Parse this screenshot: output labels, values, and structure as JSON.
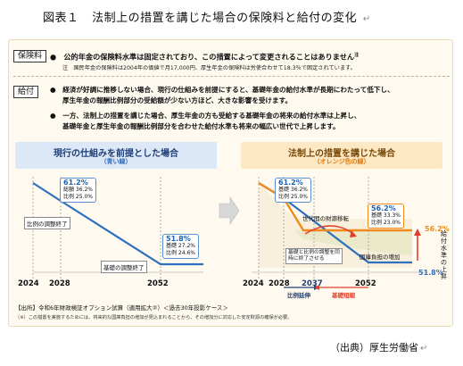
{
  "title": {
    "figure": "図表１",
    "text": "法制上の措置を講じた場合の保険料と給付の変化",
    "mark": "↵"
  },
  "premium": {
    "tag": "保険料",
    "bullet": "●　公的年金の保険料水準は固定されており、この措置によって変更されることはありません",
    "note_mark": "注",
    "note": "注　国民年金の保険料は2004年の価値で月17,000円、厚生年金の保険料は労使合わせて18.3％で固定されています。"
  },
  "benefit": {
    "tag": "給付",
    "bullet1_l1": "●　経済が好調に推移しない場合、現行の仕組みを前提にすると、基礎年金の給付水準が長期にわたって低下し、",
    "bullet1_l2": "厚生年金の報酬比例部分の受給額が少ない方ほど、大きな影響を受けます。",
    "bullet2_l1": "●　一方、法制上の措置を講じた場合、厚生年金の方も受給する基礎年金の将来の給付水準は上昇し、",
    "bullet2_l2": "基礎年金と厚生年金の報酬比例部分を合わせた給付水準も将来の幅広い世代で上昇します。"
  },
  "left_chart": {
    "title": "現行の仕組みを前提とした場合",
    "subtitle": "（青い線）",
    "start": {
      "total": "61.2%",
      "l1": "総額 36.2%",
      "l2": "比例 25.0%"
    },
    "end": {
      "total": "51.8%",
      "l1": "基礎 27.2%",
      "l2": "比例 24.6%"
    },
    "label_proportional": "比例の調整終了",
    "label_basic": "基礎の調整終了",
    "years": [
      "2024",
      "2028",
      "2052"
    ]
  },
  "right_chart": {
    "title": "法制上の措置を講じた場合",
    "subtitle": "（オレンジ色の線）",
    "start": {
      "total": "61.2%",
      "l1": "基礎 36.2%",
      "l2": "比例 25.0%"
    },
    "end": {
      "total": "56.2%",
      "l1": "基礎 33.3%",
      "l2": "比例 23.0%"
    },
    "label_transfer": "世代間の財源移転",
    "label_adjust": "基礎と比例の調整を同時に終了させる",
    "label_burden": "国庫負担の増加",
    "value_orange": "56.2%",
    "value_blue": "51.8%",
    "axis_label": "給付水準の上昇",
    "years": [
      "2024",
      "2028",
      "2037",
      "2052"
    ],
    "extend_label": "比例延伸",
    "shorten_label": "基礎短縮"
  },
  "footer": {
    "source_line": "【出所】令和6年財政検証オプション試算（適用拡大②）＜過去30年投影ケース＞",
    "note_line": "（※）この措置を実施するためには、将来的な国庫負担の増加が見込まれることから、その増加分に対応した安定財源の確保が必要。"
  },
  "source": "（出典）厚生労働省",
  "colors": {
    "blue": "#2f6fbf",
    "orange": "#f08a1c",
    "green_fill": "#cfe6b4",
    "basic_fill": "#e6eef8"
  }
}
